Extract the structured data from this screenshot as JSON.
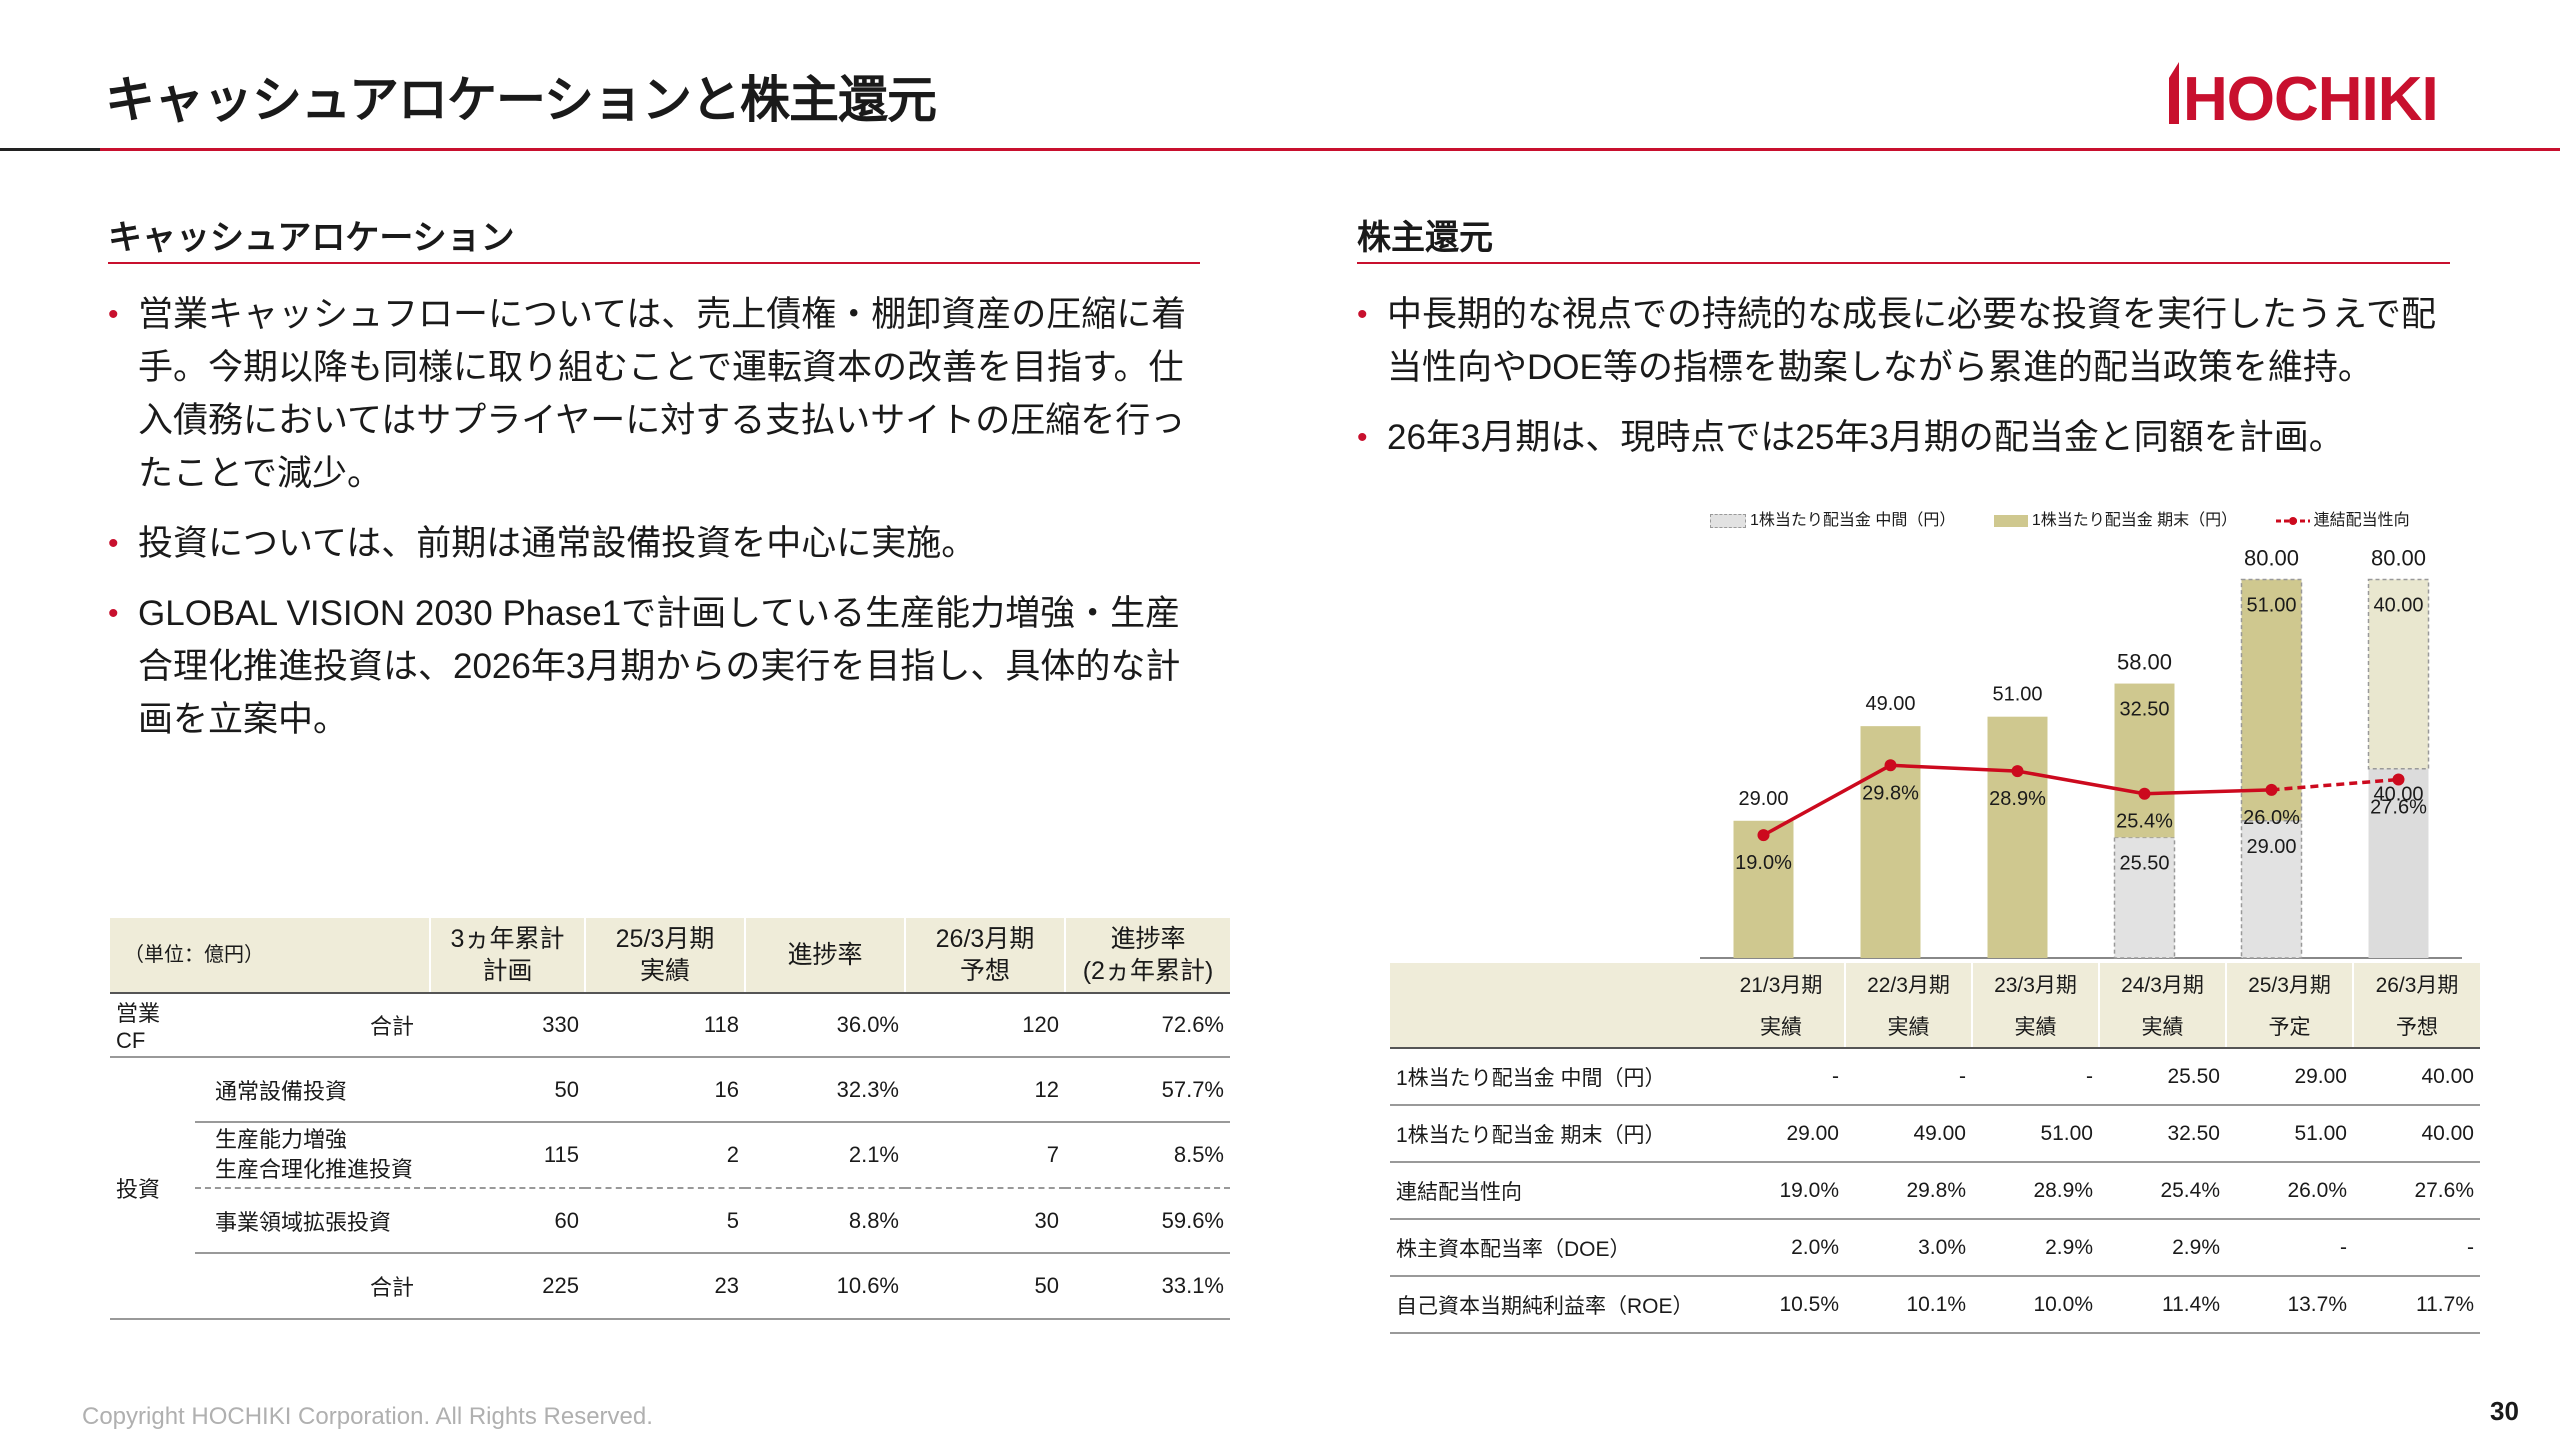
{
  "header": {
    "title": "キャッシュアロケーションと株主還元",
    "logo_text": "HOCHIKI"
  },
  "left": {
    "heading": "キャッシュアロケーション",
    "bullets": [
      "営業キャッシュフローについては、売上債権・棚卸資産の圧縮に着手。今期以降も同様に取り組むことで運転資本の改善を目指す。仕入債務においてはサプライヤーに対する支払いサイトの圧縮を行ったことで減少。",
      "投資については、前期は通常設備投資を中心に実施。",
      "GLOBAL VISION 2030 Phase1で計画している生産能力増強・生産合理化推進投資は、2026年3月期からの実行を目指し、具体的な計画を立案中。"
    ],
    "table": {
      "unit": "（単位：億円）",
      "columns": [
        "3ヵ年累計\n計画",
        "25/3月期\n実績",
        "進捗率",
        "26/3月期\n予想",
        "進捗率\n(2ヵ年累計)"
      ],
      "opcf": {
        "label": "営業CF",
        "sub": "合計",
        "values": [
          "330",
          "118",
          "36.0%",
          "120",
          "72.6%"
        ]
      },
      "invest_label": "投資",
      "invest_rows": [
        {
          "label": "通常設備投資",
          "values": [
            "50",
            "16",
            "32.3%",
            "12",
            "57.7%"
          ]
        },
        {
          "label": "生産能力増強\n生産合理化推進投資",
          "values": [
            "115",
            "2",
            "2.1%",
            "7",
            "8.5%"
          ]
        },
        {
          "label": "事業領域拡張投資",
          "values": [
            "60",
            "5",
            "8.8%",
            "30",
            "59.6%"
          ]
        }
      ],
      "invest_total": {
        "label": "合計",
        "values": [
          "225",
          "23",
          "10.6%",
          "50",
          "33.1%"
        ]
      }
    }
  },
  "right": {
    "heading": "株主還元",
    "bullets": [
      "中長期的な視点での持続的な成長に必要な投資を実行したうえで配当性向やDOE等の指標を勘案しながら累進的配当政策を維持。",
      "26年3月期は、現時点では25年3月期の配当金と同額を計画。"
    ],
    "table": {
      "columns": [
        {
          "period": "21/3月期",
          "status": "実績"
        },
        {
          "period": "22/3月期",
          "status": "実績"
        },
        {
          "period": "23/3月期",
          "status": "実績"
        },
        {
          "period": "24/3月期",
          "status": "実績"
        },
        {
          "period": "25/3月期",
          "status": "予定"
        },
        {
          "period": "26/3月期",
          "status": "予想"
        }
      ],
      "rows": [
        {
          "label": "1株当たり配当金 中間（円）",
          "values": [
            "-",
            "-",
            "-",
            "25.50",
            "29.00",
            "40.00"
          ]
        },
        {
          "label": "1株当たり配当金 期末（円）",
          "values": [
            "29.00",
            "49.00",
            "51.00",
            "32.50",
            "51.00",
            "40.00"
          ]
        },
        {
          "label": "連結配当性向",
          "values": [
            "19.0%",
            "29.8%",
            "28.9%",
            "25.4%",
            "26.0%",
            "27.6%"
          ]
        },
        {
          "label": "株主資本配当率（DOE）",
          "values": [
            "2.0%",
            "3.0%",
            "2.9%",
            "2.9%",
            "-",
            "-"
          ]
        },
        {
          "label": "自己資本当期純利益率（ROE）",
          "values": [
            "10.5%",
            "10.1%",
            "10.0%",
            "11.4%",
            "13.7%",
            "11.7%"
          ]
        }
      ]
    }
  },
  "chart_data": {
    "type": "bar",
    "stacked": true,
    "categories": [
      "21/3月期",
      "22/3月期",
      "23/3月期",
      "24/3月期",
      "25/3月期",
      "26/3月期"
    ],
    "series": [
      {
        "name": "1株当たり配当金 中間（円）",
        "values": [
          0,
          0,
          0,
          25.5,
          29.0,
          40.0
        ],
        "labels": [
          "",
          "",
          "",
          "25.50",
          "29.00",
          "40.00"
        ]
      },
      {
        "name": "1株当たり配当金 期末（円）",
        "values": [
          29.0,
          49.0,
          51.0,
          32.5,
          51.0,
          40.0
        ],
        "labels": [
          "29.00",
          "49.00",
          "51.00",
          "32.50",
          "51.00",
          "40.00"
        ]
      },
      {
        "name": "連結配当性向",
        "type": "line",
        "values": [
          19.0,
          29.8,
          28.9,
          25.4,
          26.0,
          27.6
        ],
        "labels": [
          "19.0%",
          "29.8%",
          "28.9%",
          "25.4%",
          "26.0%",
          "27.6%"
        ]
      }
    ],
    "totals": [
      "",
      "",
      "",
      "58.00",
      "80.00",
      "80.00"
    ],
    "ylim": [
      0,
      82
    ],
    "payout_ylim": [
      0,
      60
    ],
    "legend_position": "top",
    "colors": {
      "interim": "#e2e2e2",
      "year_end": "#cfc88f",
      "forecast_year_end": "#e9e7cf",
      "line": "#cc0a1e"
    }
  },
  "footer": {
    "copyright": "Copyright HOCHIKI Corporation. All Rights Reserved.",
    "page_number": "30"
  }
}
